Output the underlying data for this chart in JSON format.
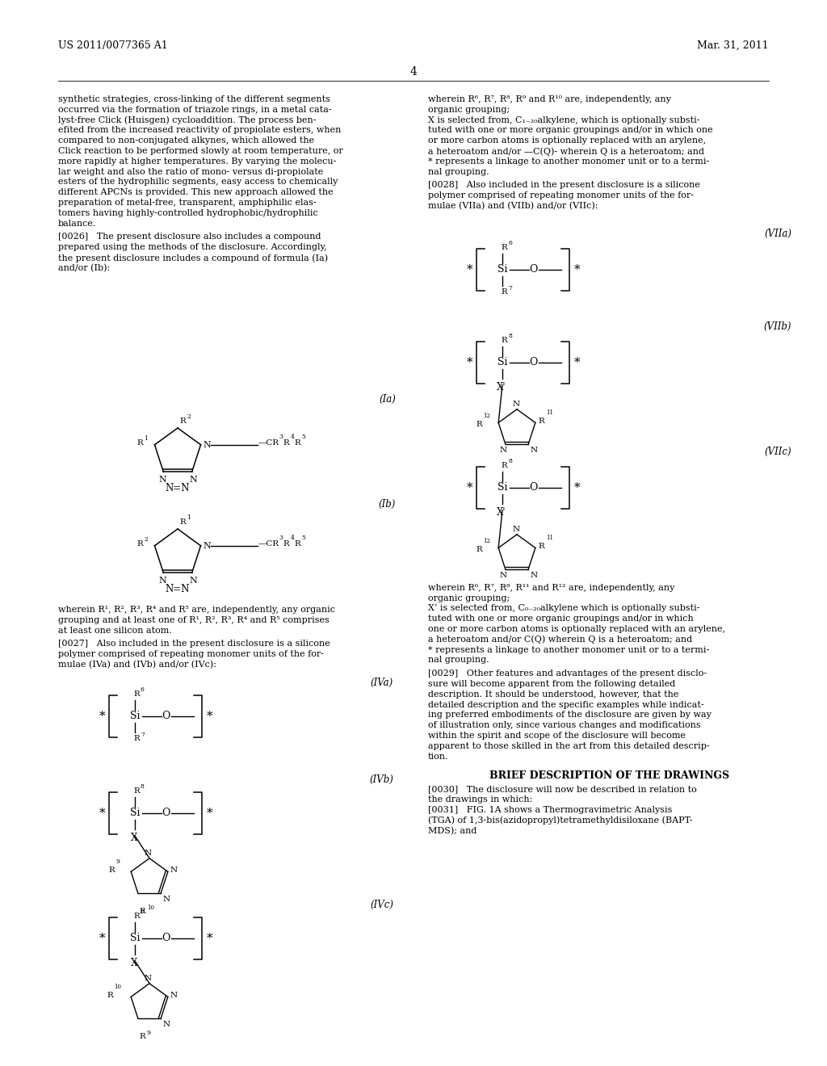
{
  "bg": "#ffffff",
  "header_left": "US 2011/0077365 A1",
  "header_right": "Mar. 31, 2011",
  "page_num": "4"
}
